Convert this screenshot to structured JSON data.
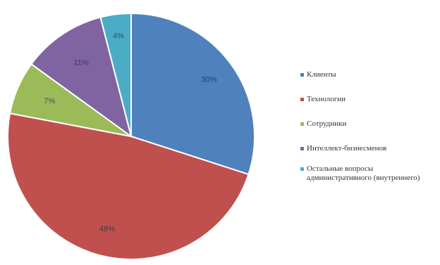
{
  "chart_data": {
    "type": "pie",
    "title": "",
    "slices": [
      {
        "label": "Клиенты",
        "value": 30,
        "display": "30%",
        "color": "#4f81bd"
      },
      {
        "label": "Технологии",
        "value": 48,
        "display": "48%",
        "color": "#c0504d"
      },
      {
        "label": "Сотрудники",
        "value": 7,
        "display": "7%",
        "color": "#9bbb59"
      },
      {
        "label": "Интеллект-бизнесменов",
        "value": 11,
        "display": "11%",
        "color": "#8064a2"
      },
      {
        "label": "Остальные вопросы административного (внутреннего)",
        "value": 4,
        "display": "4%",
        "color": "#4bacc6"
      }
    ],
    "legend_position": "right"
  }
}
